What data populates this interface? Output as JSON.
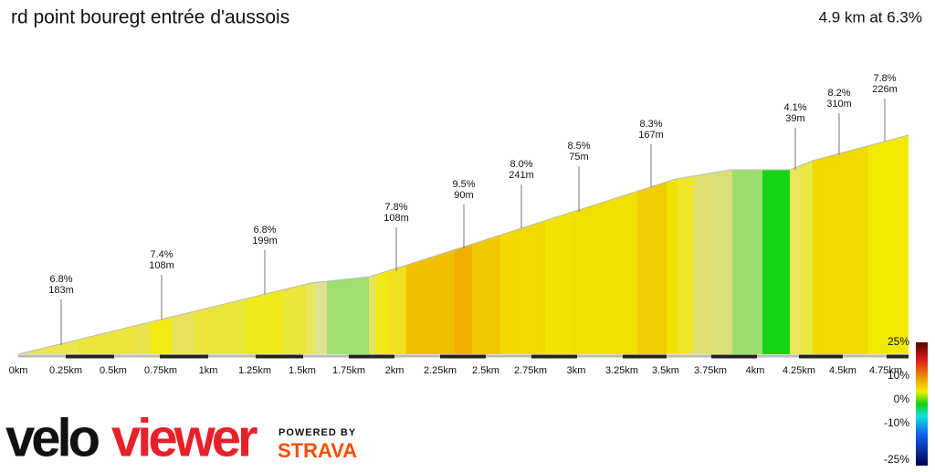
{
  "header": {
    "title": "rd point bouregt entrée d'aussois",
    "summary": "4.9 km at 6.3%"
  },
  "annotations": [
    {
      "grade": "6.8%",
      "length": "183m"
    },
    {
      "grade": "7.4%",
      "length": "108m"
    },
    {
      "grade": "6.8%",
      "length": "199m"
    },
    {
      "grade": "7.8%",
      "length": "108m"
    },
    {
      "grade": "9.5%",
      "length": "90m"
    },
    {
      "grade": "8.0%",
      "length": "241m"
    },
    {
      "grade": "8.5%",
      "length": "75m"
    },
    {
      "grade": "8.3%",
      "length": "167m"
    },
    {
      "grade": "4.1%",
      "length": "39m"
    },
    {
      "grade": "8.2%",
      "length": "310m"
    },
    {
      "grade": "7.8%",
      "length": "226m"
    }
  ],
  "x_axis": [
    "0km",
    "0.25km",
    "0.5km",
    "0.75km",
    "1km",
    "1.25km",
    "1.5km",
    "1.75km",
    "2km",
    "2.25km",
    "2.5km",
    "2.75km",
    "3km",
    "3.25km",
    "3.5km",
    "3.75km",
    "4km",
    "4.25km",
    "4.5km",
    "4.75km"
  ],
  "legend": [
    "25%",
    "10%",
    "0%",
    "-10%",
    "-25%"
  ],
  "branding": {
    "logo_part1": "velo",
    "logo_part2": "viewer",
    "powered": "POWERED BY",
    "strava": "STRAVA"
  }
}
